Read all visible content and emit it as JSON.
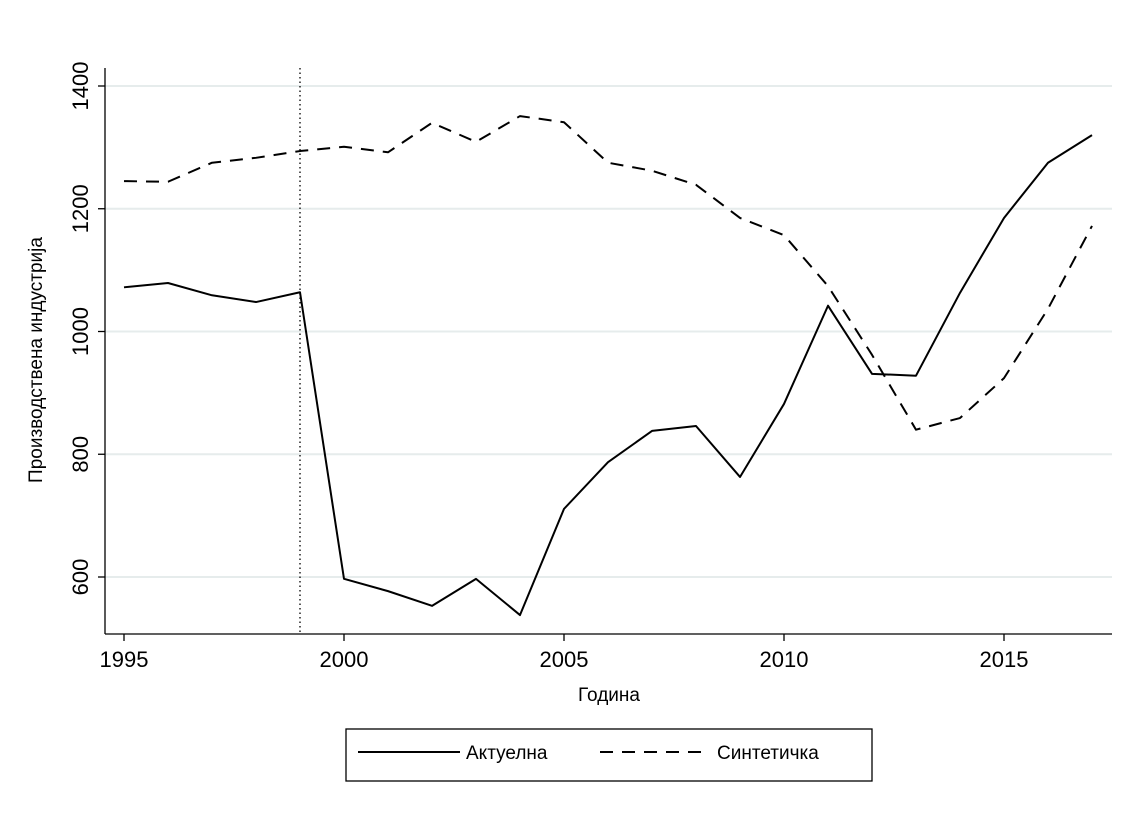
{
  "chart_data": {
    "type": "line",
    "title": "",
    "xlabel": "Година",
    "ylabel": "Производствена индустрија",
    "xlim": [
      1995,
      2017
    ],
    "ylim": [
      540,
      1400
    ],
    "x_ticks": [
      1995,
      2000,
      2005,
      2010,
      2015
    ],
    "y_ticks": [
      600,
      800,
      1000,
      1200,
      1400
    ],
    "grid": true,
    "legend_position": "bottom",
    "reference_line_x": 1999,
    "x": [
      1995,
      1996,
      1997,
      1998,
      1999,
      2000,
      2001,
      2002,
      2003,
      2004,
      2005,
      2006,
      2007,
      2008,
      2009,
      2010,
      2011,
      2012,
      2013,
      2014,
      2015,
      2016,
      2017
    ],
    "series": [
      {
        "name": "Актуелна",
        "style": "solid",
        "values": [
          1072,
          1079,
          1059,
          1048,
          1064,
          597,
          577,
          553,
          597,
          538,
          711,
          787,
          838,
          846,
          763,
          882,
          1042,
          931,
          928,
          1063,
          1185,
          1275,
          1320
        ]
      },
      {
        "name": "Синтетичка",
        "style": "dashed",
        "values": [
          1245,
          1244,
          1275,
          1283,
          1294,
          1301,
          1292,
          1340,
          1309,
          1351,
          1341,
          1275,
          1262,
          1239,
          1185,
          1157,
          1074,
          962,
          840,
          859,
          924,
          1037,
          1172
        ]
      }
    ],
    "colors": {
      "line": "#000000",
      "grid": "#e6ecec"
    }
  }
}
